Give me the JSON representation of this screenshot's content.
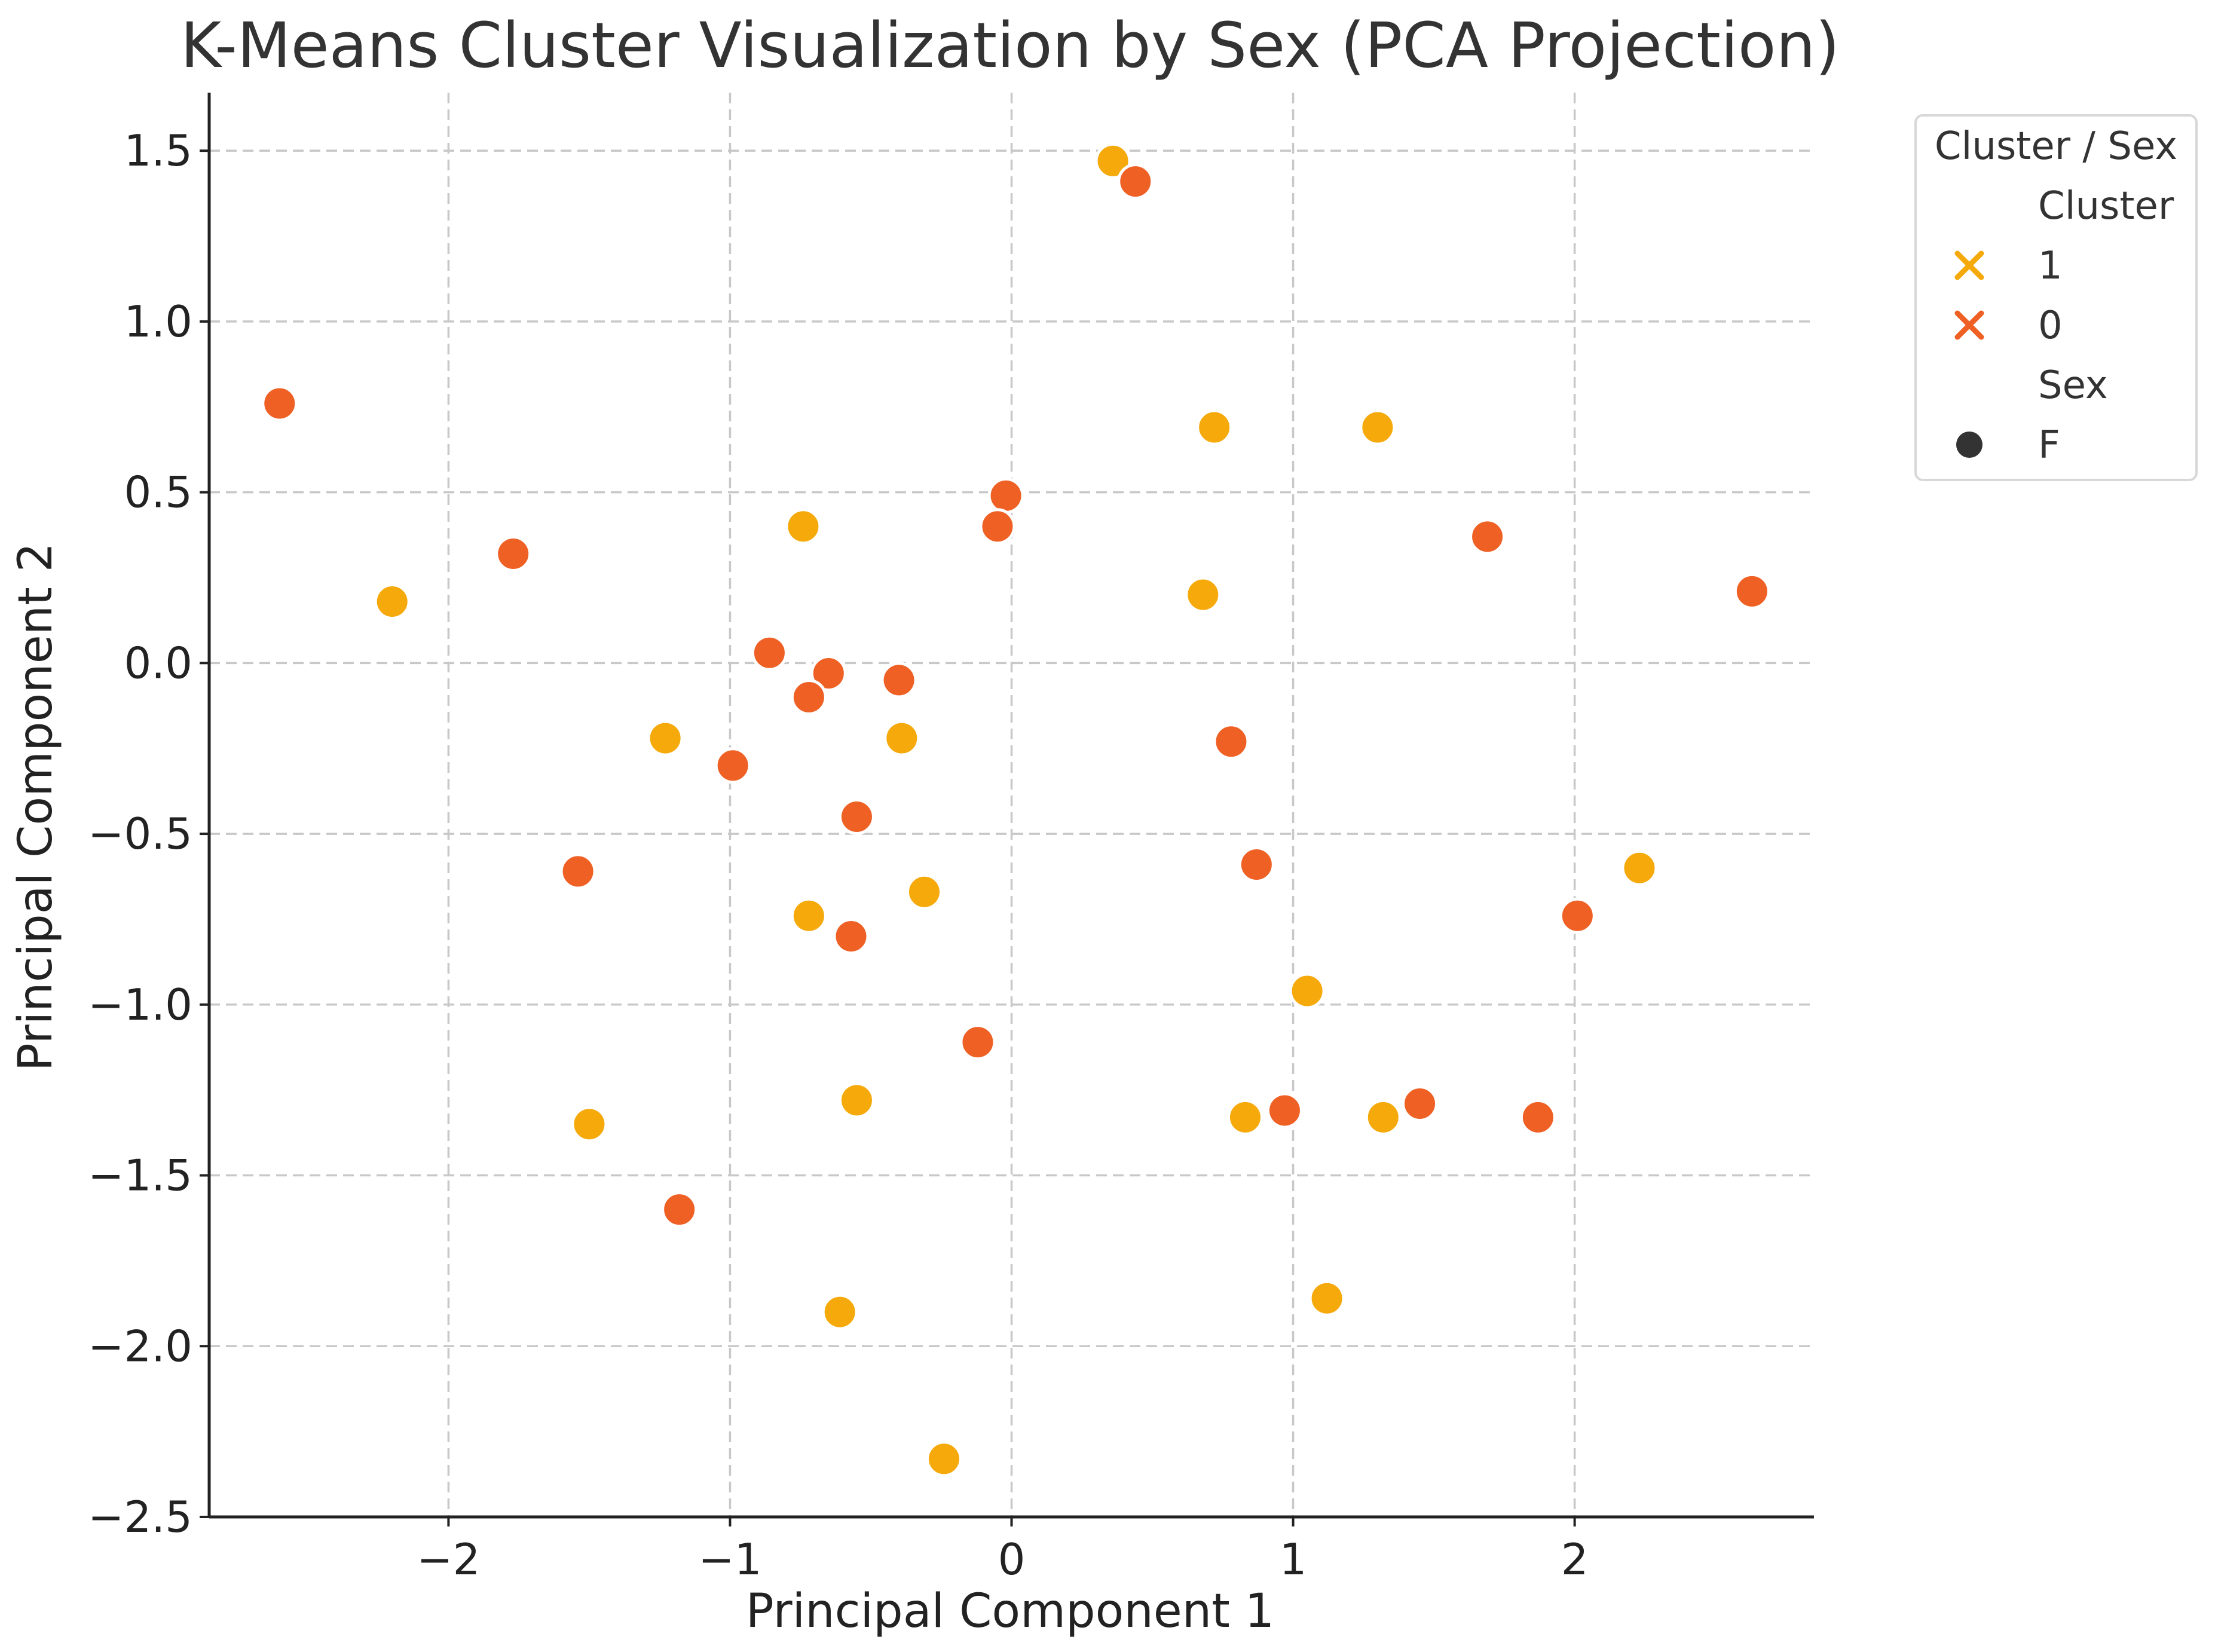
{
  "chart_data": {
    "type": "scatter",
    "title": "K-Means Cluster Visualization by Sex (PCA Projection)",
    "xlabel": "Principal Component 1",
    "ylabel": "Principal Component 2",
    "xlim": [
      -2.85,
      2.85
    ],
    "ylim": [
      -2.5,
      1.67
    ],
    "xticks": [
      -2,
      -1,
      0,
      1,
      2
    ],
    "xtick_labels": [
      "−2",
      "−1",
      "0",
      "1",
      "2"
    ],
    "yticks": [
      1.5,
      1.0,
      0.5,
      0.0,
      -0.5,
      -1.0,
      -1.5,
      -2.0,
      -2.5
    ],
    "ytick_labels": [
      "1.5",
      "1.0",
      "0.5",
      "0.0",
      "−0.5",
      "−1.0",
      "−1.5",
      "−2.0",
      "−2.5"
    ],
    "grid": true,
    "legend": {
      "title": "Cluster / Sex",
      "placement": "outside-top-right",
      "sections": [
        {
          "heading": "Cluster",
          "entries": [
            {
              "label": "1",
              "marker": "x",
              "color": "#F5A90A"
            },
            {
              "label": "0",
              "marker": "x",
              "color": "#EF6024"
            }
          ]
        },
        {
          "heading": "Sex",
          "entries": [
            {
              "label": "F",
              "marker": "o",
              "color": "#333333"
            }
          ]
        }
      ]
    },
    "series": [
      {
        "name": "1",
        "color": "#F5A90A",
        "points": [
          [
            0.36,
            1.47
          ],
          [
            0.72,
            0.69
          ],
          [
            1.3,
            0.69
          ],
          [
            -0.74,
            0.4
          ],
          [
            0.68,
            0.2
          ],
          [
            -2.2,
            0.18
          ],
          [
            -1.23,
            -0.22
          ],
          [
            -0.39,
            -0.22
          ],
          [
            2.23,
            -0.6
          ],
          [
            -0.31,
            -0.67
          ],
          [
            -0.72,
            -0.74
          ],
          [
            1.05,
            -0.96
          ],
          [
            -0.55,
            -1.28
          ],
          [
            0.83,
            -1.33
          ],
          [
            1.32,
            -1.33
          ],
          [
            -1.5,
            -1.35
          ],
          [
            1.12,
            -1.86
          ],
          [
            -0.61,
            -1.9
          ],
          [
            -0.24,
            -2.33
          ]
        ]
      },
      {
        "name": "0",
        "color": "#EF6024",
        "points": [
          [
            0.44,
            1.41
          ],
          [
            -2.6,
            0.76
          ],
          [
            -0.02,
            0.49
          ],
          [
            -0.05,
            0.4
          ],
          [
            1.69,
            0.37
          ],
          [
            -1.77,
            0.32
          ],
          [
            2.63,
            0.21
          ],
          [
            -0.86,
            0.03
          ],
          [
            -0.65,
            -0.03
          ],
          [
            -0.72,
            -0.1
          ],
          [
            -0.4,
            -0.05
          ],
          [
            0.78,
            -0.23
          ],
          [
            -0.99,
            -0.3
          ],
          [
            -0.55,
            -0.45
          ],
          [
            -1.54,
            -0.61
          ],
          [
            0.87,
            -0.59
          ],
          [
            2.01,
            -0.74
          ],
          [
            -0.57,
            -0.8
          ],
          [
            -0.12,
            -1.11
          ],
          [
            0.97,
            -1.31
          ],
          [
            1.45,
            -1.29
          ],
          [
            1.87,
            -1.33
          ],
          [
            -1.18,
            -1.6
          ]
        ]
      }
    ]
  }
}
